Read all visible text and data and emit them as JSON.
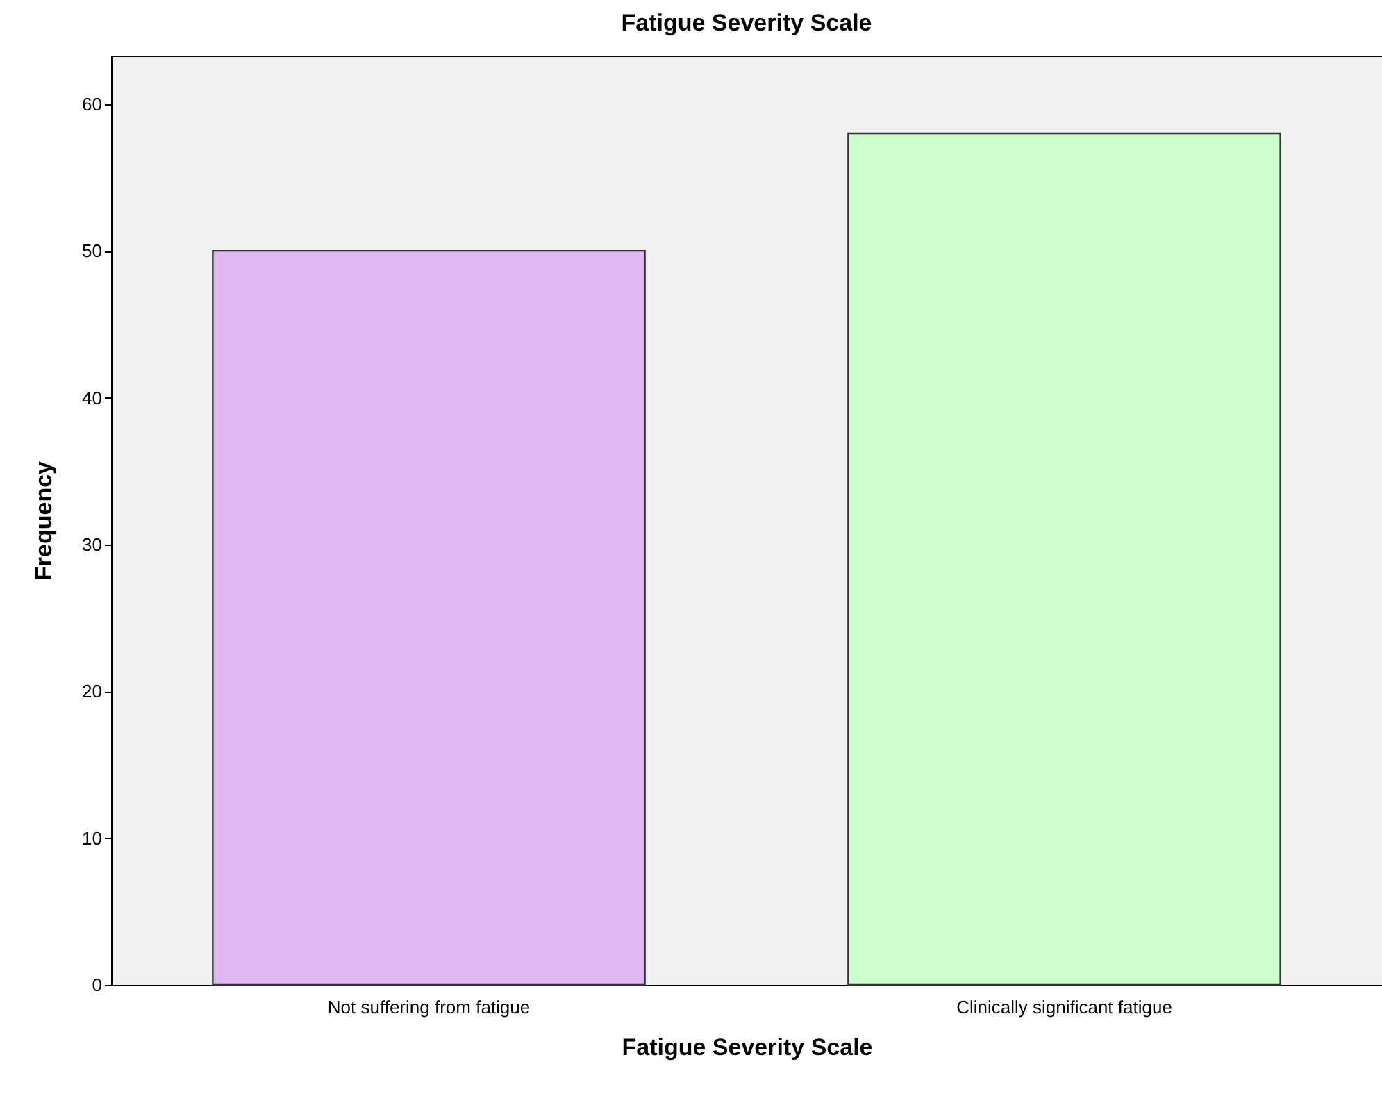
{
  "chart_data": {
    "type": "bar",
    "title": "Fatigue Severity Scale",
    "xlabel": "Fatigue Severity Scale",
    "ylabel": "Frequency",
    "categories": [
      "Not suffering from fatigue",
      "Clinically significant fatigue"
    ],
    "values": [
      50,
      58
    ],
    "colors": [
      "#dfb8f2",
      "#ccffcc"
    ],
    "ylim": [
      0,
      63.3
    ],
    "yticks": [
      0,
      10,
      20,
      30,
      40,
      50,
      60
    ],
    "grid": false
  }
}
